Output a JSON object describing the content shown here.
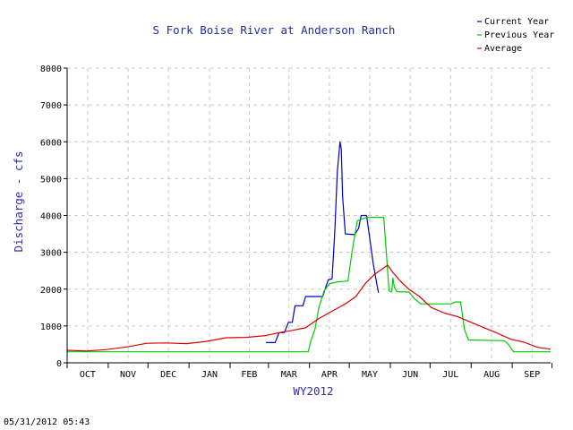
{
  "chart_data": {
    "type": "line",
    "title": "S Fork Boise River at Anderson Ranch",
    "xlabel": "WY2012",
    "ylabel": "Discharge - cfs",
    "ylim": [
      0,
      8000
    ],
    "xlim": [
      0,
      365
    ],
    "yticks": [
      "0",
      "1000",
      "2000",
      "3000",
      "4000",
      "5000",
      "6000",
      "7000",
      "8000"
    ],
    "months": [
      "OCT",
      "NOV",
      "DEC",
      "JAN",
      "FEB",
      "MAR",
      "APR",
      "MAY",
      "JUN",
      "JUL",
      "AUG",
      "SEP"
    ],
    "grid": true,
    "legend_position": "top-right",
    "series": [
      {
        "name": "Current Year",
        "color": "#0000c8",
        "points": [
          [
            150,
            550
          ],
          [
            157,
            550
          ],
          [
            160,
            820
          ],
          [
            164,
            820
          ],
          [
            167,
            1100
          ],
          [
            170,
            1100
          ],
          [
            172,
            1550
          ],
          [
            178,
            1550
          ],
          [
            180,
            1800
          ],
          [
            193,
            1800
          ],
          [
            197,
            2250
          ],
          [
            200,
            2280
          ],
          [
            202,
            3500
          ],
          [
            204,
            5200
          ],
          [
            206,
            6000
          ],
          [
            207,
            5800
          ],
          [
            208,
            4500
          ],
          [
            210,
            3500
          ],
          [
            217,
            3480
          ],
          [
            220,
            3650
          ],
          [
            222,
            4000
          ],
          [
            226,
            4000
          ],
          [
            228,
            3500
          ],
          [
            231,
            2700
          ],
          [
            233,
            2300
          ],
          [
            235,
            1900
          ]
        ]
      },
      {
        "name": "Previous Year",
        "color": "#00cc00",
        "points": [
          [
            0,
            300
          ],
          [
            182,
            300
          ],
          [
            184,
            600
          ],
          [
            187,
            900
          ],
          [
            190,
            1500
          ],
          [
            194,
            1950
          ],
          [
            198,
            2150
          ],
          [
            205,
            2200
          ],
          [
            212,
            2220
          ],
          [
            215,
            3000
          ],
          [
            219,
            3850
          ],
          [
            226,
            3950
          ],
          [
            239,
            3950
          ],
          [
            241,
            3000
          ],
          [
            243,
            1950
          ],
          [
            245,
            1920
          ],
          [
            246,
            2300
          ],
          [
            247,
            2050
          ],
          [
            249,
            1930
          ],
          [
            258,
            1920
          ],
          [
            262,
            1750
          ],
          [
            267,
            1600
          ],
          [
            290,
            1600
          ],
          [
            293,
            1650
          ],
          [
            297,
            1650
          ],
          [
            300,
            900
          ],
          [
            303,
            620
          ],
          [
            330,
            600
          ],
          [
            333,
            500
          ],
          [
            337,
            300
          ],
          [
            365,
            300
          ]
        ]
      },
      {
        "name": "Average",
        "color": "#dd0000",
        "points": [
          [
            0,
            340
          ],
          [
            15,
            320
          ],
          [
            30,
            360
          ],
          [
            45,
            430
          ],
          [
            60,
            530
          ],
          [
            75,
            540
          ],
          [
            90,
            520
          ],
          [
            105,
            580
          ],
          [
            120,
            680
          ],
          [
            135,
            690
          ],
          [
            150,
            740
          ],
          [
            160,
            820
          ],
          [
            170,
            880
          ],
          [
            180,
            950
          ],
          [
            190,
            1200
          ],
          [
            200,
            1400
          ],
          [
            210,
            1600
          ],
          [
            218,
            1800
          ],
          [
            225,
            2150
          ],
          [
            232,
            2400
          ],
          [
            238,
            2550
          ],
          [
            242,
            2650
          ],
          [
            246,
            2450
          ],
          [
            252,
            2200
          ],
          [
            258,
            2000
          ],
          [
            266,
            1800
          ],
          [
            275,
            1500
          ],
          [
            285,
            1350
          ],
          [
            295,
            1250
          ],
          [
            305,
            1100
          ],
          [
            315,
            950
          ],
          [
            325,
            800
          ],
          [
            335,
            640
          ],
          [
            345,
            560
          ],
          [
            355,
            420
          ],
          [
            365,
            370
          ]
        ]
      }
    ]
  },
  "timestamp": "05/31/2012 05:43"
}
